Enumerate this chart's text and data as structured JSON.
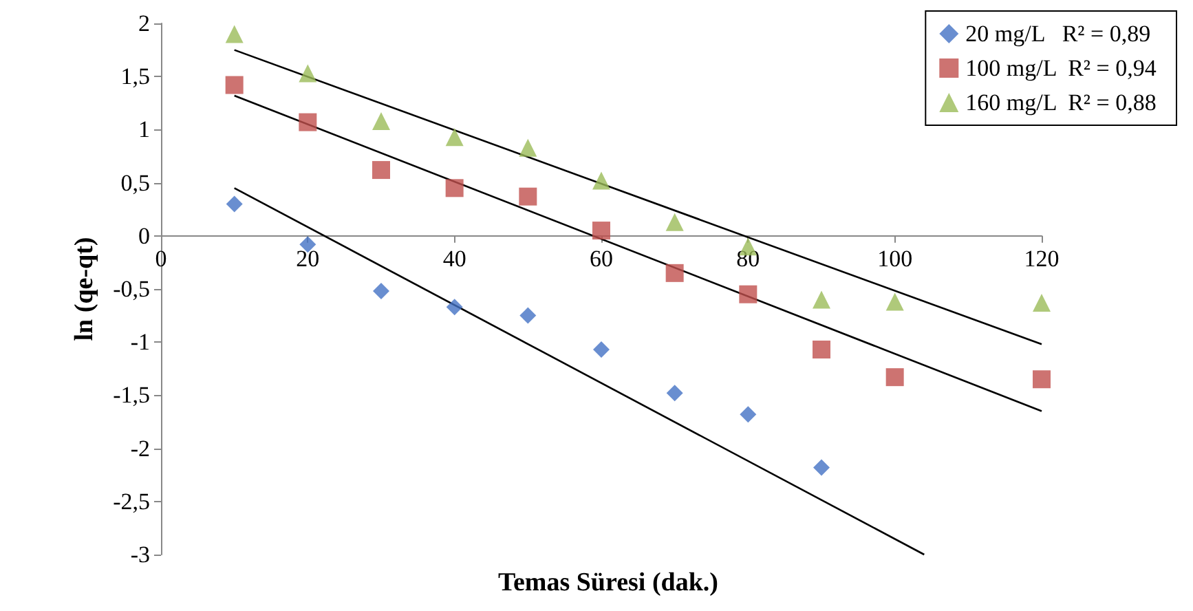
{
  "chart_data": {
    "type": "scatter",
    "xlabel": "Temas Süresi (dak.)",
    "ylabel": "ln (qe-qt)",
    "xlim": [
      0,
      120
    ],
    "xticks": [
      0,
      20,
      40,
      60,
      80,
      100,
      120
    ],
    "ylim": [
      -3,
      2
    ],
    "yticks": [
      {
        "value": -3,
        "label": "-3"
      },
      {
        "value": -2.5,
        "label": "-2,5"
      },
      {
        "value": -2,
        "label": "-2"
      },
      {
        "value": -1.5,
        "label": "-1,5"
      },
      {
        "value": -1,
        "label": "-1"
      },
      {
        "value": -0.5,
        "label": "-0,5"
      },
      {
        "value": 0,
        "label": "0"
      },
      {
        "value": 0.5,
        "label": "0,5"
      },
      {
        "value": 1,
        "label": "1"
      },
      {
        "value": 1.5,
        "label": "1,5"
      },
      {
        "value": 2,
        "label": "2"
      }
    ],
    "grid": false,
    "legend": "top right",
    "series": [
      {
        "name": "20 mg/L   R² = 0,89",
        "color": "#4472c4",
        "marker": "diamond",
        "x": [
          10,
          20,
          30,
          40,
          50,
          60,
          70,
          80,
          90
        ],
        "values": [
          0.3,
          -0.08,
          -0.52,
          -0.67,
          -0.75,
          -1.07,
          -1.48,
          -1.68,
          -2.18
        ]
      },
      {
        "name": "100 mg/L  R² = 0,94",
        "color": "#c0504d",
        "marker": "square",
        "x": [
          10,
          20,
          30,
          40,
          50,
          60,
          70,
          80,
          90,
          100,
          120
        ],
        "values": [
          1.42,
          1.07,
          0.62,
          0.45,
          0.37,
          0.05,
          -0.35,
          -0.55,
          -1.07,
          -1.33,
          -1.35
        ]
      },
      {
        "name": "160 mg/L  R² = 0,88",
        "color": "#9bbb59",
        "marker": "triangle",
        "x": [
          10,
          20,
          30,
          40,
          50,
          60,
          70,
          80,
          90,
          100,
          120
        ],
        "values": [
          1.9,
          1.53,
          1.08,
          0.93,
          0.83,
          0.52,
          0.13,
          -0.1,
          -0.6,
          -0.62,
          -0.63
        ]
      },
      {
        "type": "line",
        "color": "#000000",
        "marker": "none",
        "x": [
          10,
          104
        ],
        "values": [
          0.45,
          -3
        ]
      },
      {
        "type": "line",
        "color": "#000000",
        "marker": "none",
        "x": [
          10,
          120
        ],
        "values": [
          1.32,
          -1.65
        ]
      },
      {
        "type": "line",
        "color": "#000000",
        "marker": "none",
        "x": [
          10,
          120
        ],
        "values": [
          1.75,
          -1.02
        ]
      }
    ]
  }
}
